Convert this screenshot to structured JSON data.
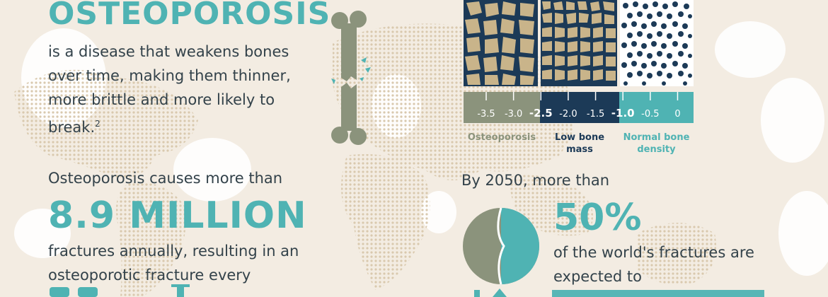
{
  "colors": {
    "teal": "#4fb3b3",
    "olive": "#8b937c",
    "navy": "#1c3a57",
    "beige": "#f3ece2",
    "text": "#33424a"
  },
  "intro": {
    "title": "Osteoporosis",
    "text": "is a disease that weakens bones over time, making them thinner, more brittle and more likely to break.",
    "footnote": "2"
  },
  "bone_density": {
    "scale_ticks": [
      "-3.5",
      "-3.0",
      "-2.5",
      "-2.0",
      "-1.5",
      "-1.0",
      "-0.5",
      "0"
    ],
    "categories": [
      {
        "label": "Osteoporosis",
        "color": "#8b937c"
      },
      {
        "label": "Low bone mass",
        "color": "#1c3a57"
      },
      {
        "label": "Normal bone density",
        "color": "#4fb3b3"
      }
    ]
  },
  "fractures": {
    "intro": "Osteoporosis causes more than",
    "figure": "8.9 MILLION",
    "body": "fractures annually, resulting in an osteoporotic fracture every"
  },
  "projection": {
    "intro": "By 2050, more than",
    "figure": "50%",
    "body": "of the world's fractures are expected to",
    "share_fraction": 0.5
  }
}
